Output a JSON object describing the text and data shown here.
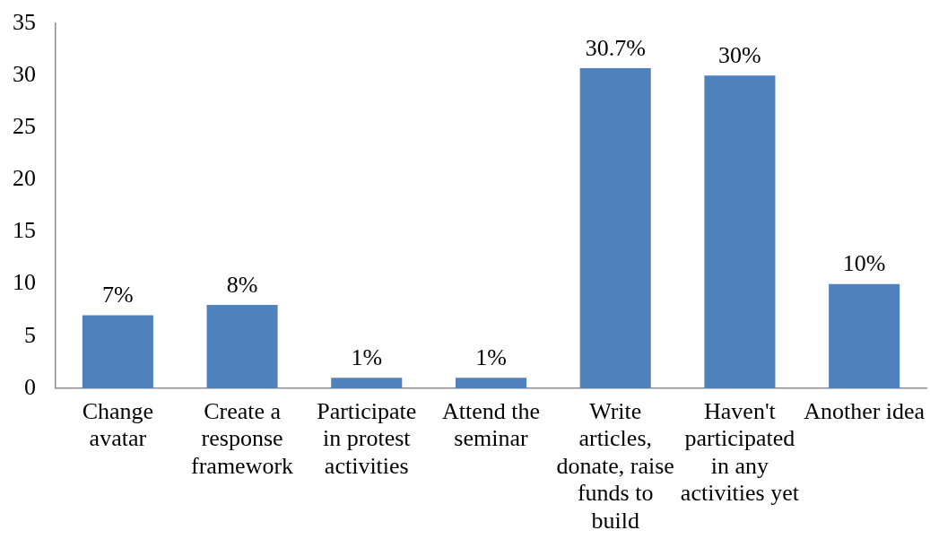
{
  "chart_data": {
    "type": "bar",
    "categories": [
      "Change avatar",
      "Create a response framework",
      "Participate in protest activities",
      "Attend the seminar",
      "Write articles, donate, raise funds to build",
      "Haven't participated in any activities yet",
      "Another idea"
    ],
    "values": [
      7,
      8,
      1,
      1,
      30.7,
      30,
      10
    ],
    "value_labels": [
      "7%",
      "8%",
      "1%",
      "1%",
      "30.7%",
      "30%",
      "10%"
    ],
    "color": "#4f81bd",
    "ylim": [
      0,
      35
    ],
    "yticks": [
      0,
      5,
      10,
      15,
      20,
      25,
      30,
      35
    ]
  }
}
